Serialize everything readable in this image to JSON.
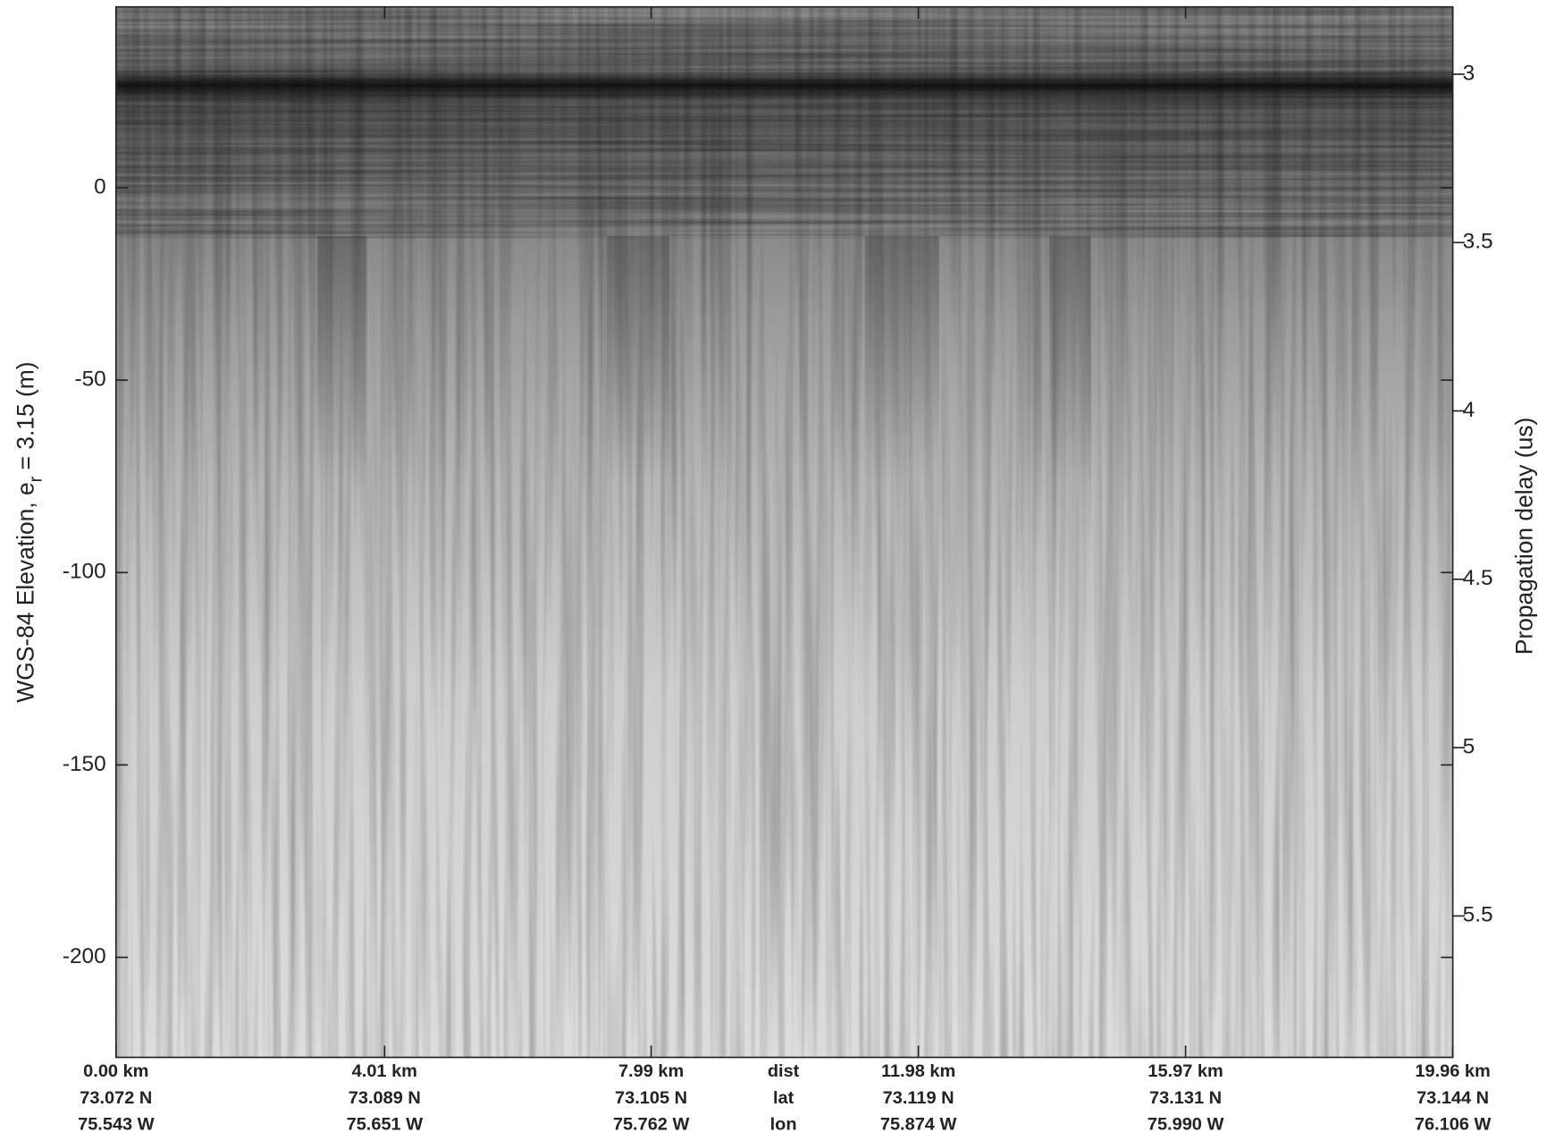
{
  "chart_data": {
    "type": "radargram",
    "ylabel": {
      "main": "WGS-84 Elevation, e",
      "sub": "r",
      "rest": " = 3.15 (m)"
    },
    "y2label": "Propagation delay (us)",
    "ylim": [
      -226,
      47
    ],
    "yticks": [
      0,
      -50,
      -100,
      -150,
      -200
    ],
    "y2lim": [
      5.92,
      2.8
    ],
    "y2ticks": [
      3,
      3.5,
      4,
      4.5,
      5,
      5.5
    ],
    "xlim": [
      0,
      19.96
    ],
    "xticks": [
      {
        "value": 0,
        "label": "0.00 km"
      },
      {
        "value": 4.01,
        "label": "4.01 km"
      },
      {
        "value": 7.99,
        "label": "7.99 km"
      },
      {
        "value": 11.98,
        "label": "11.98 km"
      },
      {
        "value": 15.97,
        "label": "15.97 km"
      },
      {
        "value": 19.96,
        "label": "19.96 km"
      }
    ],
    "lat_labels": [
      "73.072 N",
      "73.089 N",
      "73.105 N",
      "73.119 N",
      "73.131 N",
      "73.144 N"
    ],
    "lon_labels": [
      "75.543 W",
      "75.651 W",
      "75.762 W",
      "75.874 W",
      "75.990 W",
      "76.106 W"
    ],
    "row_names": [
      "dist",
      "lat",
      "lon"
    ]
  }
}
